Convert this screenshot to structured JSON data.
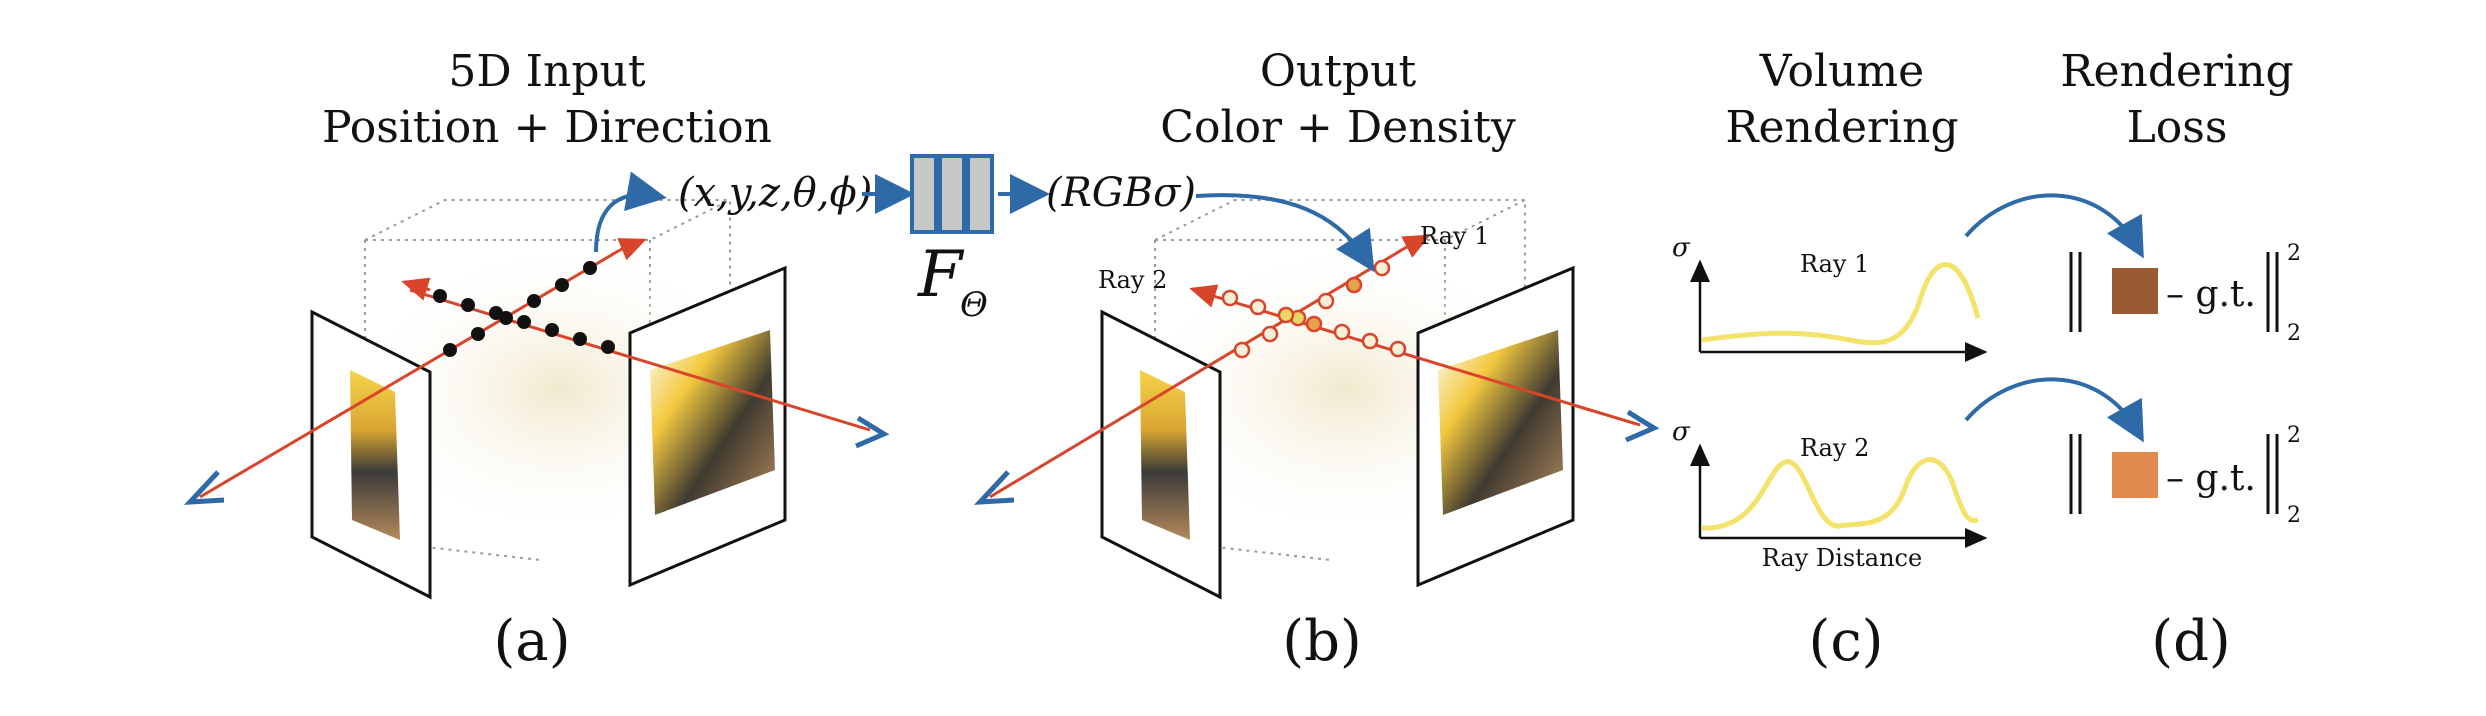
{
  "panels": {
    "a": {
      "title_line1": "5D Input",
      "title_line2": "Position + Direction",
      "input_tuple": "(x,y,z,θ,ϕ)",
      "label": "(a)"
    },
    "network": {
      "symbol": "F",
      "subscript": "Θ"
    },
    "b": {
      "title_line1": "Output",
      "title_line2": "Color + Density",
      "output_tuple": "(RGBσ)",
      "ray1": "Ray 1",
      "ray2": "Ray 2",
      "label": "(b)"
    },
    "c": {
      "title_line1": "Volume",
      "title_line2": "Rendering",
      "sigma": "σ",
      "ray1": "Ray 1",
      "ray2": "Ray 2",
      "xlabel": "Ray Distance",
      "label": "(c)"
    },
    "d": {
      "title_line1": "Rendering",
      "title_line2": "Loss",
      "gt": "– g.t.",
      "subscript": "2",
      "superscript": "2",
      "label": "(d)"
    }
  },
  "colors": {
    "ray_red": "#d9452a",
    "arrow_blue": "#2f6aa8",
    "curve_yellow": "#f3e36a",
    "swatch_ray1": "#9a5a34",
    "swatch_ray2": "#e08a4f",
    "network_fill": "#c7c7c7"
  },
  "icons": [
    "rendered-scene-image",
    "network-blocks-icon",
    "density-plot",
    "loss-swatch"
  ]
}
